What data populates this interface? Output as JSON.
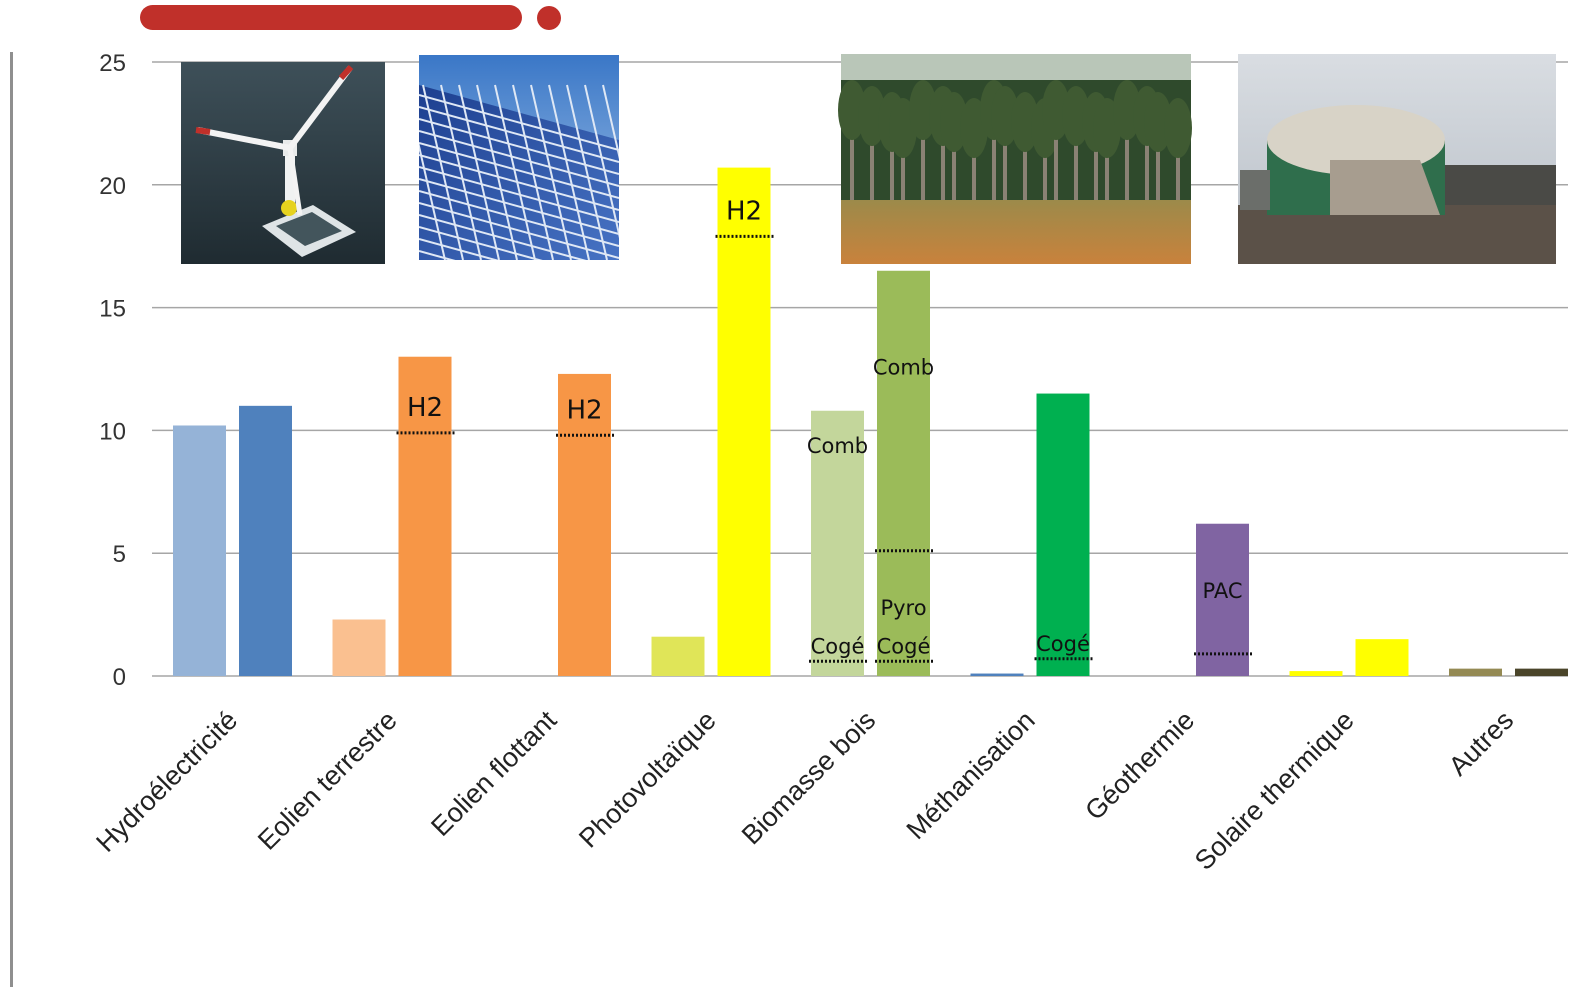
{
  "colors": {
    "header_bar": "#c0302a",
    "gridline": "#a6a6a6",
    "axis_text": "#333333"
  },
  "chart_data": {
    "type": "bar",
    "title": "",
    "xlabel": "",
    "ylabel": "",
    "ylim": [
      0,
      25
    ],
    "yticks": [
      0,
      5,
      10,
      15,
      20,
      25
    ],
    "grid": true,
    "legend": "none",
    "categories": [
      "Hydroélectricité",
      "Eolien terrestre",
      "Eolien flottant",
      "Photovoltaïque",
      "Biomasse bois",
      "Méthanisation",
      "Géothermie",
      "Solaire thermique",
      "Autres"
    ],
    "bars": [
      {
        "category": "Hydroélectricité",
        "slot": 0,
        "value": 10.2,
        "color": "#95b3d7"
      },
      {
        "category": "Hydroélectricité",
        "slot": 1,
        "value": 11.0,
        "color": "#4f81bd"
      },
      {
        "category": "Eolien terrestre",
        "slot": 0,
        "value": 2.3,
        "color": "#fac090"
      },
      {
        "category": "Eolien terrestre",
        "slot": 1,
        "value": 13.0,
        "color": "#f79646"
      },
      {
        "category": "Eolien flottant",
        "slot": 1,
        "value": 12.3,
        "color": "#f79646"
      },
      {
        "category": "Photovoltaïque",
        "slot": 0,
        "value": 1.6,
        "color": "#e0e558"
      },
      {
        "category": "Photovoltaïque",
        "slot": 1,
        "value": 20.7,
        "color": "#ffff00"
      },
      {
        "category": "Biomasse bois",
        "slot": 0,
        "value": 10.8,
        "color": "#c3d69b"
      },
      {
        "category": "Biomasse bois",
        "slot": 1,
        "value": 16.5,
        "color": "#9bbb59"
      },
      {
        "category": "Méthanisation",
        "slot": 0,
        "value": 0.1,
        "color": "#4f81bd"
      },
      {
        "category": "Méthanisation",
        "slot": 1,
        "value": 11.5,
        "color": "#00b050"
      },
      {
        "category": "Géothermie",
        "slot": 1,
        "value": 6.2,
        "color": "#8064a2"
      },
      {
        "category": "Solaire thermique",
        "slot": 0,
        "value": 0.2,
        "color": "#ffff00"
      },
      {
        "category": "Solaire thermique",
        "slot": 1,
        "value": 1.5,
        "color": "#ffff00"
      },
      {
        "category": "Autres",
        "slot": 0,
        "value": 0.3,
        "color": "#948a54"
      },
      {
        "category": "Autres",
        "slot": 1,
        "value": 0.3,
        "color": "#4a452a"
      }
    ],
    "annotations": [
      {
        "text": "H2",
        "category": "Eolien terrestre",
        "slot": 1,
        "level": 9.9,
        "size": "large"
      },
      {
        "text": "H2",
        "category": "Eolien flottant",
        "slot": 1,
        "level": 9.8,
        "size": "large"
      },
      {
        "text": "H2",
        "category": "Photovoltaïque",
        "slot": 1,
        "level": 17.9,
        "size": "large"
      },
      {
        "text": "Comb",
        "category": "Biomasse bois",
        "slot": 0,
        "level": null,
        "label_level": 9.4,
        "size": "small"
      },
      {
        "text": "Comb",
        "category": "Biomasse bois",
        "slot": 1,
        "level": null,
        "label_level": 12.6,
        "size": "small"
      },
      {
        "text": "Pyro",
        "category": "Biomasse bois",
        "slot": 1,
        "level": 5.1,
        "label_level": 2.8,
        "size": "small"
      },
      {
        "text": "Cogé",
        "category": "Biomasse bois",
        "slot": 0,
        "level": 0.6,
        "size": "small"
      },
      {
        "text": "Cogé",
        "category": "Biomasse bois",
        "slot": 1,
        "level": 0.6,
        "size": "small"
      },
      {
        "text": "Cogé",
        "category": "Méthanisation",
        "slot": 1,
        "level": 0.7,
        "size": "small"
      },
      {
        "text": "PAC",
        "category": "Géothermie",
        "slot": 1,
        "level": 0.9,
        "label_level": 3.5,
        "size": "small"
      }
    ]
  },
  "photos": [
    {
      "name": "floating-wind-turbine-photo",
      "subject": "floating offshore wind turbine"
    },
    {
      "name": "solar-panels-photo",
      "subject": "solar panels"
    },
    {
      "name": "pine-forest-photo",
      "subject": "pine forest"
    },
    {
      "name": "biogas-plant-photo",
      "subject": "biogas digester plant"
    }
  ]
}
